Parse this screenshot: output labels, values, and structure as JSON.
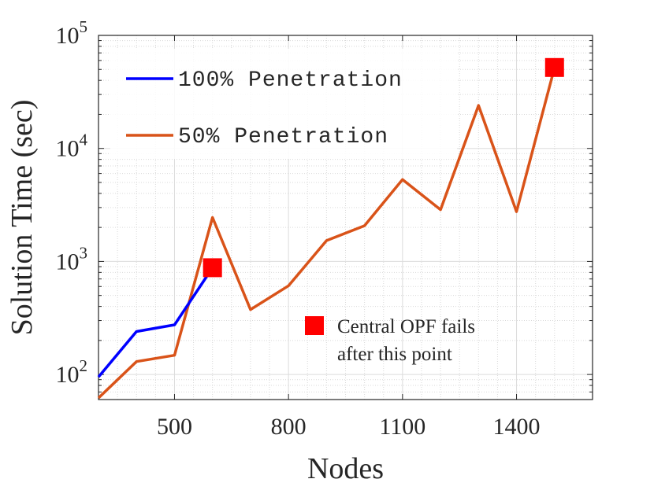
{
  "chart_data": {
    "type": "line",
    "xlabel": "Nodes",
    "ylabel": "Solution Time (sec)",
    "xlim": [
      300,
      1600
    ],
    "ylim": [
      60,
      100000
    ],
    "yscale": "log",
    "grid": true,
    "legend_position": "top-left",
    "xticks": [
      500,
      800,
      1100,
      1400
    ],
    "xtick_labels": [
      "500",
      "800",
      "1100",
      "1400"
    ],
    "ytick_labels": [
      {
        "base": "10",
        "exp": "2",
        "value": 100
      },
      {
        "base": "10",
        "exp": "3",
        "value": 1000
      },
      {
        "base": "10",
        "exp": "4",
        "value": 10000
      },
      {
        "base": "10",
        "exp": "5",
        "value": 100000
      }
    ],
    "series": [
      {
        "name": "100% Penetration",
        "color": "#0000ff",
        "x": [
          300,
          400,
          500,
          600
        ],
        "y": [
          95,
          240,
          275,
          880
        ]
      },
      {
        "name": "50% Penetration",
        "color": "#d95319",
        "x": [
          300,
          400,
          500,
          600,
          700,
          800,
          900,
          1000,
          1100,
          1200,
          1300,
          1400,
          1500
        ],
        "y": [
          62,
          130,
          148,
          2450,
          375,
          610,
          1530,
          2070,
          5300,
          2870,
          24000,
          2760,
          52000
        ]
      }
    ],
    "markers": [
      {
        "x": 600,
        "y": 880,
        "color": "#ff0000"
      },
      {
        "x": 1500,
        "y": 52000,
        "color": "#ff0000"
      }
    ],
    "annotation": {
      "line1": "Central OPF fails",
      "line2": "after this point",
      "color": "#ff0000"
    }
  }
}
